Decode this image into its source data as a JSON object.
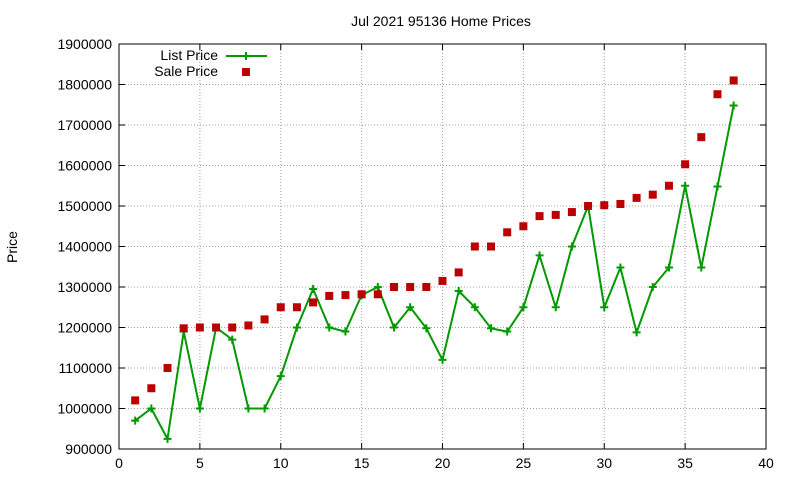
{
  "chart_data": {
    "type": "line",
    "title": "Jul 2021 95136 Home Prices",
    "xlabel": "",
    "ylabel": "Price",
    "xlim": [
      0,
      40
    ],
    "ylim": [
      900000,
      1900000
    ],
    "xticks": [
      0,
      5,
      10,
      15,
      20,
      25,
      30,
      35,
      40
    ],
    "yticks": [
      900000,
      1000000,
      1100000,
      1200000,
      1300000,
      1400000,
      1500000,
      1600000,
      1700000,
      1800000,
      1900000
    ],
    "grid": true,
    "legend_position": "top-left",
    "x": [
      1,
      2,
      3,
      4,
      5,
      6,
      7,
      8,
      9,
      10,
      11,
      12,
      13,
      14,
      15,
      16,
      17,
      18,
      19,
      20,
      21,
      22,
      23,
      24,
      25,
      26,
      27,
      28,
      29,
      30,
      31,
      32,
      33,
      34,
      35,
      36,
      37,
      38
    ],
    "series": [
      {
        "name": "List Price",
        "style": "line-with-plus-markers",
        "color": "#009900",
        "values": [
          970000,
          1000000,
          925000,
          1190000,
          1000000,
          1200000,
          1170000,
          1000000,
          1000000,
          1080000,
          1200000,
          1295000,
          1200000,
          1190000,
          1280000,
          1300000,
          1200000,
          1250000,
          1198000,
          1120000,
          1290000,
          1250000,
          1198000,
          1190000,
          1250000,
          1378000,
          1250000,
          1400000,
          1500000,
          1250000,
          1348000,
          1188000,
          1300000,
          1348000,
          1550000,
          1348000,
          1548000,
          1748000
        ]
      },
      {
        "name": "Sale Price",
        "style": "square-markers",
        "color": "#bb0000",
        "values": [
          1020000,
          1050000,
          1100000,
          1198000,
          1200000,
          1200000,
          1200000,
          1205000,
          1220000,
          1250000,
          1250000,
          1262000,
          1278000,
          1280000,
          1282000,
          1282000,
          1300000,
          1300000,
          1300000,
          1315000,
          1336000,
          1400000,
          1400000,
          1435000,
          1450000,
          1475000,
          1478000,
          1485000,
          1500000,
          1502000,
          1505000,
          1520000,
          1528000,
          1550000,
          1603000,
          1670000,
          1776000,
          1810000
        ]
      }
    ]
  }
}
